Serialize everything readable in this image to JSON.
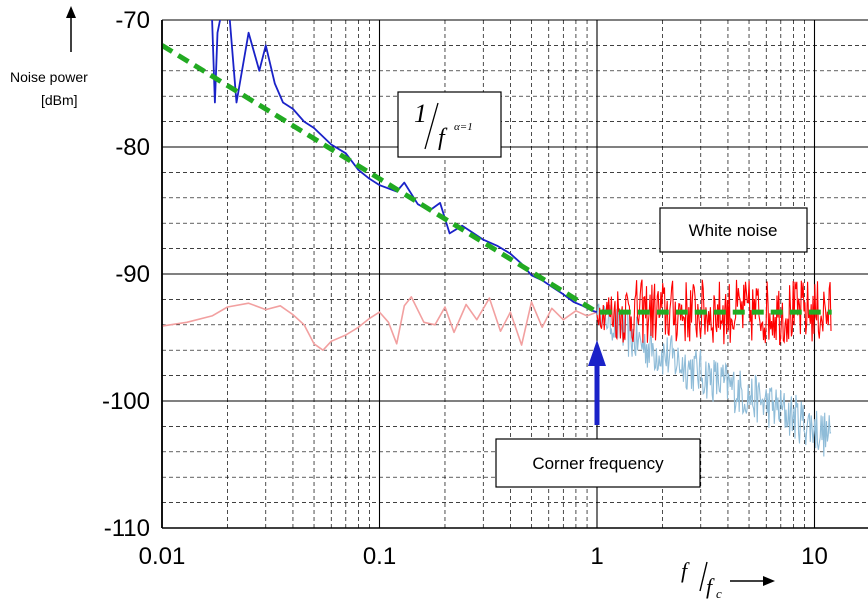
{
  "chart_data": {
    "type": "line",
    "title": "",
    "xscale": "log",
    "xlim": [
      0.01,
      10
    ],
    "ylim": [
      -110,
      -70
    ],
    "xticks": [
      "0.01",
      "0.1",
      "1",
      "10"
    ],
    "yticks": [
      "-70",
      "-80",
      "-90",
      "-100",
      "-110"
    ],
    "ylabel_line1": "Noise power",
    "ylabel_line2": "[dBm]",
    "xlabel": {
      "num": "f",
      "den": "f",
      "den_sub": "c"
    },
    "grid": true,
    "series": [
      {
        "color": "#1a22c8",
        "style": "solid",
        "points": [
          [
            0.017,
            -70
          ],
          [
            0.0175,
            -76.5
          ],
          [
            0.018,
            -71
          ],
          [
            0.019,
            -69
          ],
          [
            0.0205,
            -70
          ],
          [
            0.022,
            -76.5
          ],
          [
            0.025,
            -71
          ],
          [
            0.028,
            -74
          ],
          [
            0.03,
            -72
          ],
          [
            0.033,
            -75
          ],
          [
            0.036,
            -76.5
          ],
          [
            0.04,
            -77
          ],
          [
            0.045,
            -78
          ],
          [
            0.05,
            -78.5
          ],
          [
            0.06,
            -79.8
          ],
          [
            0.07,
            -80.5
          ],
          [
            0.08,
            -81.8
          ],
          [
            0.09,
            -82.5
          ],
          [
            0.1,
            -83
          ],
          [
            0.12,
            -83.5
          ],
          [
            0.13,
            -82.8
          ],
          [
            0.15,
            -84.5
          ],
          [
            0.17,
            -85
          ],
          [
            0.19,
            -84.4
          ],
          [
            0.21,
            -86.8
          ],
          [
            0.24,
            -86.2
          ],
          [
            0.26,
            -86.6
          ],
          [
            0.3,
            -87.3
          ],
          [
            0.35,
            -87.8
          ],
          [
            0.4,
            -88.4
          ],
          [
            0.45,
            -89.2
          ],
          [
            0.5,
            -90.1
          ],
          [
            0.56,
            -90.5
          ],
          [
            0.62,
            -91.0
          ],
          [
            0.7,
            -91.6
          ],
          [
            0.78,
            -92.2
          ],
          [
            0.86,
            -92.5
          ],
          [
            0.95,
            -92.9
          ],
          [
            1.0,
            -93.0
          ]
        ]
      },
      {
        "color": "#f2a0a0",
        "style": "solid",
        "points": [
          [
            0.01,
            -94.1
          ],
          [
            0.013,
            -93.8
          ],
          [
            0.017,
            -93.3
          ],
          [
            0.02,
            -92.6
          ],
          [
            0.025,
            -92.3
          ],
          [
            0.03,
            -92.8
          ],
          [
            0.035,
            -92.5
          ],
          [
            0.04,
            -93.2
          ],
          [
            0.045,
            -94.0
          ],
          [
            0.05,
            -95.5
          ],
          [
            0.055,
            -96.0
          ],
          [
            0.06,
            -95.3
          ],
          [
            0.07,
            -94.8
          ],
          [
            0.08,
            -94.2
          ],
          [
            0.09,
            -93.5
          ],
          [
            0.1,
            -93.0
          ],
          [
            0.11,
            -93.8
          ],
          [
            0.12,
            -95.5
          ],
          [
            0.13,
            -92.5
          ],
          [
            0.14,
            -91.8
          ],
          [
            0.16,
            -93.8
          ],
          [
            0.18,
            -94.0
          ],
          [
            0.2,
            -92.6
          ],
          [
            0.22,
            -94.6
          ],
          [
            0.25,
            -92.4
          ],
          [
            0.28,
            -93.6
          ],
          [
            0.32,
            -91.9
          ],
          [
            0.36,
            -94.5
          ],
          [
            0.4,
            -93.0
          ],
          [
            0.45,
            -95.6
          ],
          [
            0.5,
            -92.2
          ],
          [
            0.56,
            -94.2
          ],
          [
            0.62,
            -92.7
          ],
          [
            0.7,
            -93.6
          ],
          [
            0.8,
            -92.9
          ],
          [
            0.9,
            -93.3
          ],
          [
            1.0,
            -93.0
          ]
        ]
      },
      {
        "color": "#ff0000",
        "style": "noise",
        "points": [
          [
            1.0,
            -93.0
          ],
          [
            2,
            -93.0
          ],
          [
            5,
            -93.0
          ],
          [
            10,
            -93.0
          ],
          [
            12,
            -93.0
          ]
        ]
      },
      {
        "color": "#8fbcd8",
        "style": "noise",
        "points": [
          [
            1.0,
            -93.0
          ],
          [
            1.5,
            -95.2
          ],
          [
            2,
            -96.3
          ],
          [
            3,
            -97.8
          ],
          [
            5,
            -99.6
          ],
          [
            8,
            -101.2
          ],
          [
            10,
            -102.1
          ],
          [
            12,
            -103.0
          ]
        ]
      },
      {
        "color": "#22aa22",
        "style": "dashed",
        "points": [
          [
            0.01,
            -72
          ],
          [
            1.0,
            -93
          ],
          [
            12,
            -93
          ]
        ]
      }
    ],
    "annotations": {
      "formula_box": {
        "num": "1",
        "den": "f",
        "exp": "α=1"
      },
      "white_noise": "White noise",
      "corner_frequency": "Corner frequency",
      "corner_x": 1.0
    }
  }
}
